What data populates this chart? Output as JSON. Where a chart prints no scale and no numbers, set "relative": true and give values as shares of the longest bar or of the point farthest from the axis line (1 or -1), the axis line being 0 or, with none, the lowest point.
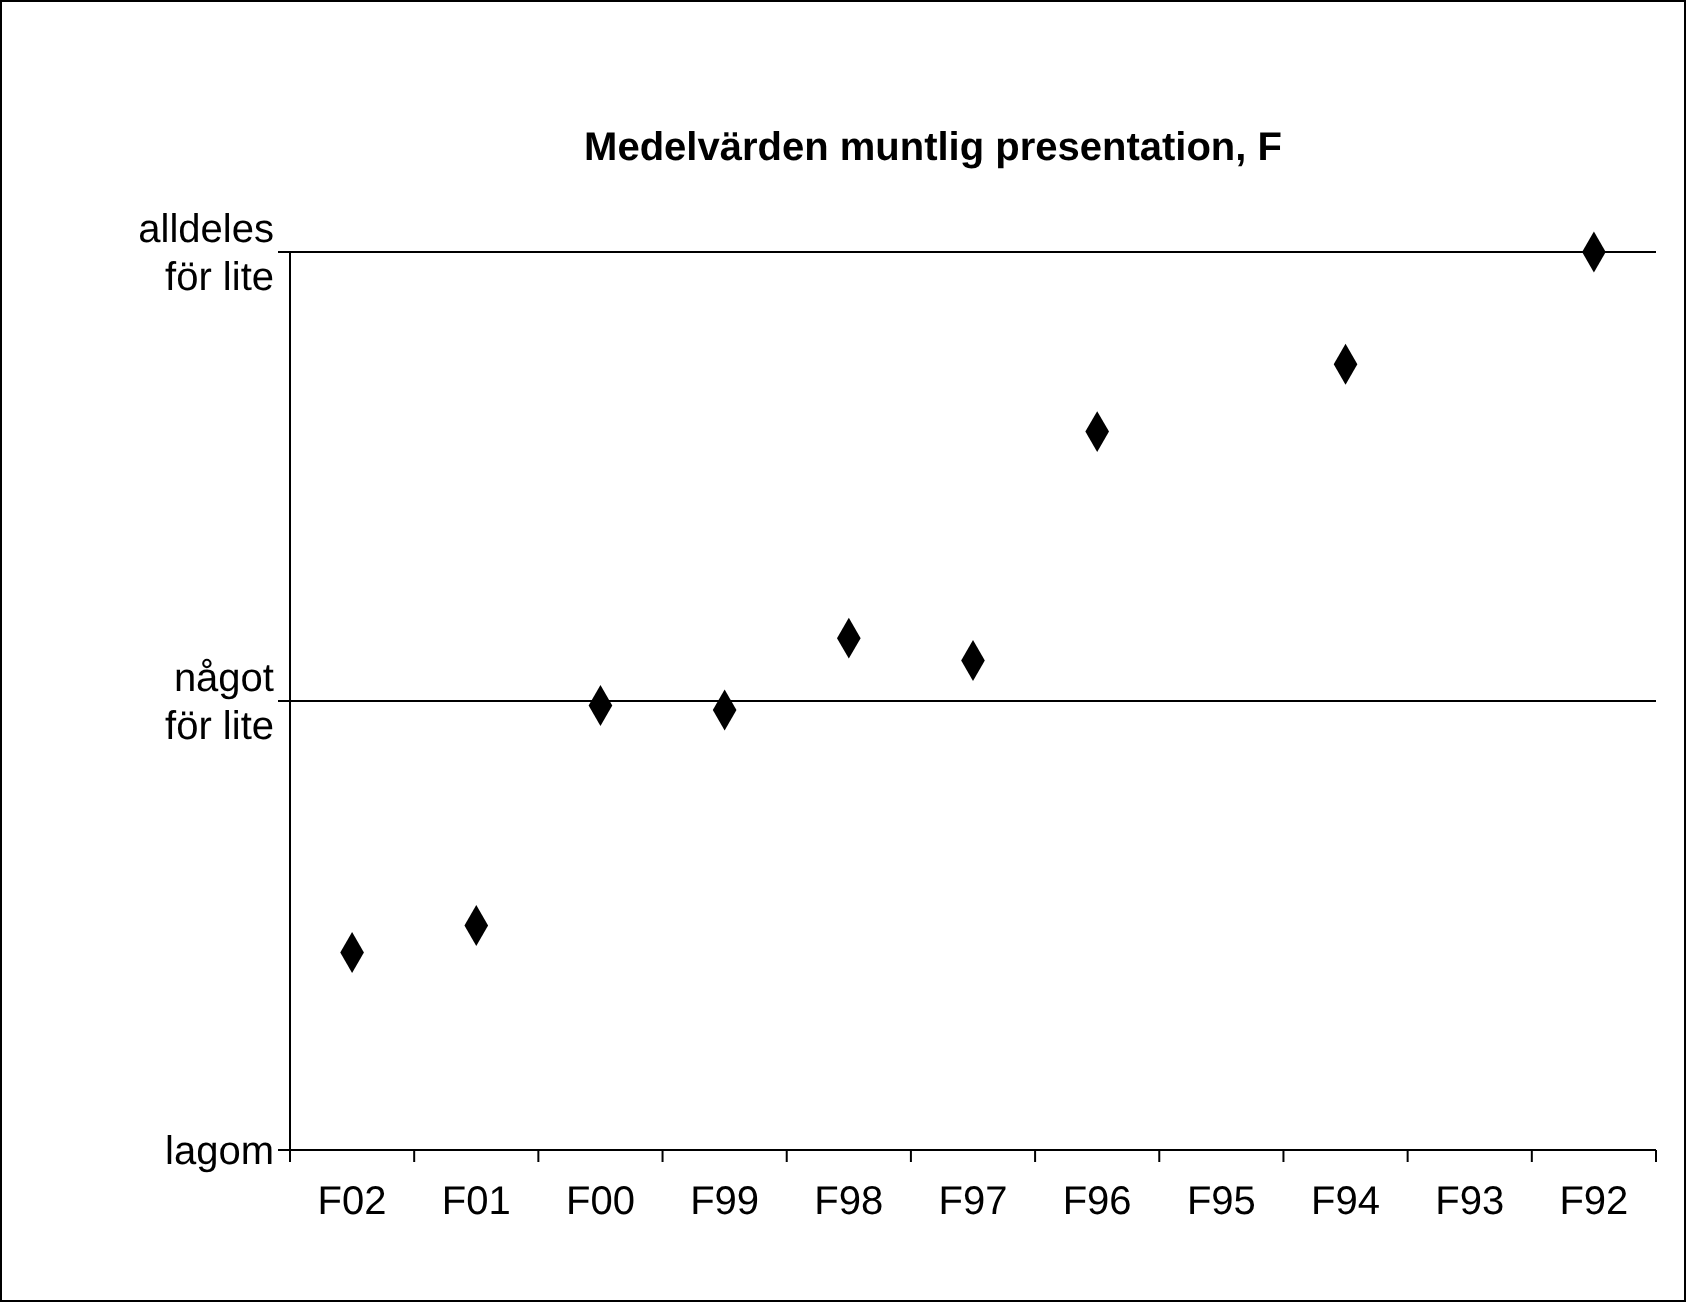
{
  "chart_data": {
    "type": "scatter",
    "title": "Medelvärden muntlig presentation, F",
    "categories": [
      "F02",
      "F01",
      "F00",
      "F99",
      "F98",
      "F97",
      "F96",
      "F95",
      "F94",
      "F93",
      "F92"
    ],
    "values": [
      0.22,
      0.25,
      0.495,
      0.49,
      0.57,
      0.545,
      0.8,
      null,
      0.875,
      null,
      1.0
    ],
    "relative": true,
    "color": "#000000",
    "marker": "diamond",
    "annotations": [
      "lagom",
      "något för lite",
      "alldeles för lite"
    ],
    "ref_lines": [
      {
        "axis": "y",
        "value": 0.5
      },
      {
        "axis": "y",
        "value": 1
      }
    ]
  }
}
